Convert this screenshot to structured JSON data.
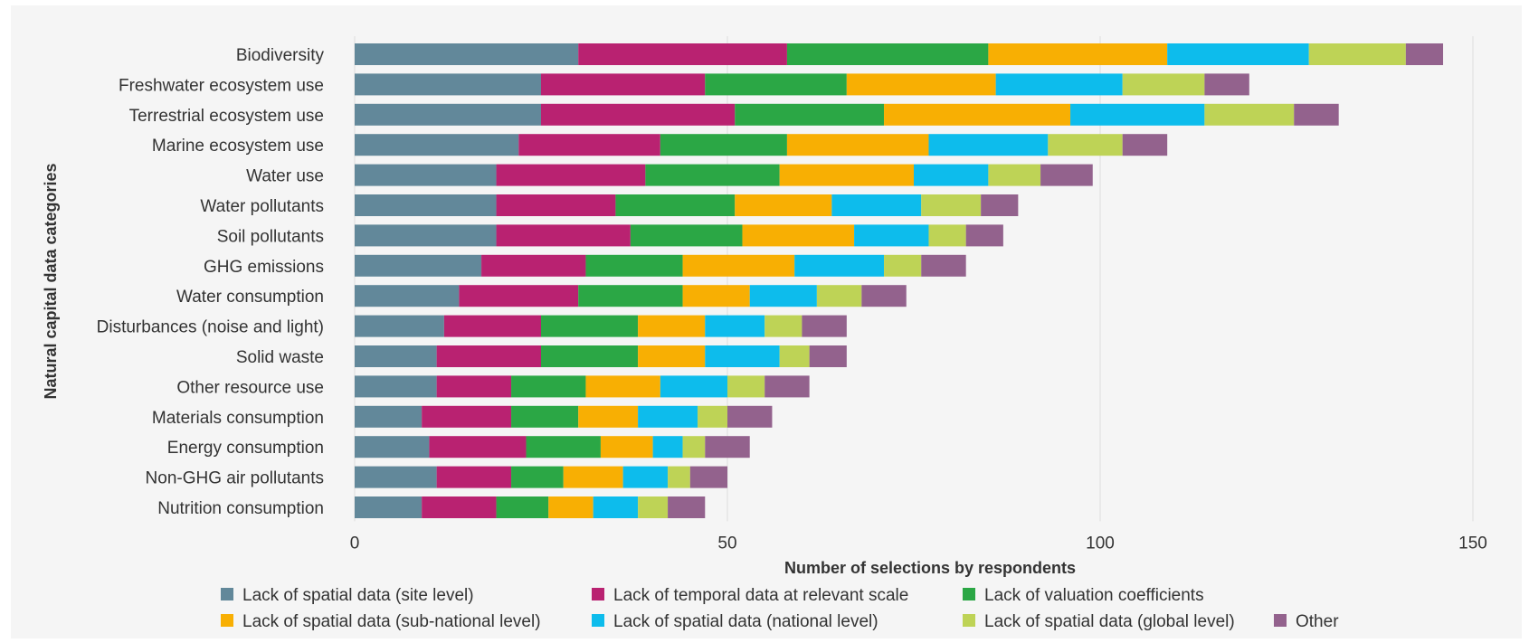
{
  "chart_data": {
    "type": "bar",
    "orientation": "horizontal",
    "stacked": true,
    "xlabel": "Number of selections by respondents",
    "ylabel": "Natural capital data categories",
    "xlim": [
      0,
      150
    ],
    "xticks": [
      "0",
      "50",
      "100",
      "150"
    ],
    "grid": "vertical",
    "legend_position": "bottom",
    "categories": [
      "Biodiversity",
      "Freshwater ecosystem use",
      "Terrestrial ecosystem use",
      "Marine ecosystem use",
      "Water use",
      "Water pollutants",
      "Soil pollutants",
      "GHG emissions",
      "Water consumption",
      "Disturbances (noise and light)",
      "Solid waste",
      "Other resource use",
      "Materials consumption",
      "Energy consumption",
      "Non-GHG air pollutants",
      "Nutrition consumption"
    ],
    "series": [
      {
        "name": "Lack of spatial data (site level)",
        "color": "#62889a",
        "values": [
          30,
          25,
          25,
          22,
          19,
          19,
          19,
          17,
          14,
          12,
          11,
          11,
          9,
          10,
          11,
          9
        ]
      },
      {
        "name": "Lack of temporal data at relevant scale",
        "color": "#b92271",
        "values": [
          28,
          22,
          26,
          19,
          20,
          16,
          18,
          14,
          16,
          13,
          14,
          10,
          12,
          13,
          10,
          10
        ]
      },
      {
        "name": "Lack of valuation coefficients",
        "color": "#2ba745",
        "values": [
          27,
          19,
          20,
          17,
          18,
          16,
          15,
          13,
          14,
          13,
          13,
          10,
          9,
          10,
          7,
          7
        ]
      },
      {
        "name": "Lack of spatial data (sub-national level)",
        "color": "#f8af03",
        "values": [
          24,
          20,
          25,
          19,
          18,
          13,
          15,
          15,
          9,
          9,
          9,
          10,
          8,
          7,
          8,
          6
        ]
      },
      {
        "name": "Lack of spatial data (national level)",
        "color": "#0dbcec",
        "values": [
          19,
          17,
          18,
          16,
          10,
          12,
          10,
          12,
          9,
          8,
          10,
          9,
          8,
          4,
          6,
          6
        ]
      },
      {
        "name": "Lack of spatial data (global level)",
        "color": "#bed356",
        "values": [
          13,
          11,
          12,
          10,
          7,
          8,
          5,
          5,
          6,
          5,
          4,
          5,
          4,
          3,
          3,
          4
        ]
      },
      {
        "name": "Other",
        "color": "#93628d",
        "values": [
          5,
          6,
          6,
          6,
          7,
          5,
          5,
          6,
          6,
          6,
          5,
          6,
          6,
          6,
          5,
          5
        ]
      }
    ]
  }
}
